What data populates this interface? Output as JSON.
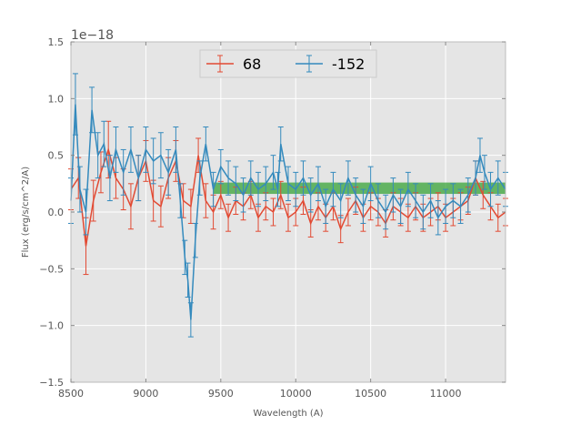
{
  "chart_data": {
    "type": "line",
    "title": "",
    "xlabel": "Wavelength (A)",
    "ylabel": "Flux (erg/s/cm^2/A)",
    "y_offset_label": "1e−18",
    "xlim": [
      8500,
      11400
    ],
    "ylim": [
      -1.5,
      1.5
    ],
    "xticks": [
      8500,
      9000,
      9500,
      10000,
      10500,
      11000
    ],
    "xtick_labels": [
      "8500",
      "9000",
      "9500",
      "10000",
      "10500",
      "11000"
    ],
    "yticks": [
      -1.5,
      -1.0,
      -0.5,
      0.0,
      0.5,
      1.0,
      1.5
    ],
    "ytick_labels": [
      "−1.5",
      "−1.0",
      "−0.5",
      "0.0",
      "0.5",
      "1.0",
      "1.5"
    ],
    "grid": true,
    "legend_position": "top-center",
    "background_color": "#e5e5e5",
    "band": {
      "x_start": 9450,
      "x_end": 11400,
      "y_low": 0.16,
      "y_high": 0.26,
      "color": "#2ca02c"
    },
    "series": [
      {
        "name": "68",
        "color": "#e24a33",
        "x": [
          8500,
          8550,
          8600,
          8650,
          8700,
          8750,
          8800,
          8850,
          8900,
          8950,
          9000,
          9050,
          9100,
          9150,
          9200,
          9250,
          9300,
          9350,
          9400,
          9450,
          9500,
          9550,
          9600,
          9650,
          9700,
          9750,
          9800,
          9850,
          9900,
          9950,
          10000,
          10050,
          10100,
          10150,
          10200,
          10250,
          10300,
          10350,
          10400,
          10450,
          10500,
          10550,
          10600,
          10650,
          10700,
          10750,
          10800,
          10850,
          10900,
          10950,
          11000,
          11050,
          11100,
          11150,
          11200,
          11250,
          11300,
          11350,
          11400
        ],
        "y": [
          0.2,
          0.3,
          -0.3,
          0.1,
          0.35,
          0.55,
          0.3,
          0.2,
          0.05,
          0.3,
          0.45,
          0.1,
          0.05,
          0.3,
          0.45,
          0.1,
          0.05,
          0.5,
          0.1,
          0.0,
          0.15,
          -0.05,
          0.1,
          0.05,
          0.15,
          -0.05,
          0.05,
          0.0,
          0.15,
          -0.05,
          0.0,
          0.1,
          -0.1,
          0.05,
          -0.05,
          0.05,
          -0.15,
          0.0,
          0.1,
          -0.05,
          0.05,
          0.0,
          -0.1,
          0.05,
          0.0,
          -0.05,
          0.05,
          -0.05,
          0.0,
          0.05,
          -0.05,
          0.0,
          0.05,
          0.1,
          0.3,
          0.15,
          0.05,
          -0.05,
          0.0
        ],
        "yerr": [
          0.18,
          0.18,
          0.25,
          0.18,
          0.18,
          0.25,
          0.18,
          0.18,
          0.2,
          0.2,
          0.18,
          0.18,
          0.18,
          0.18,
          0.18,
          0.15,
          0.15,
          0.15,
          0.15,
          0.15,
          0.12,
          0.12,
          0.12,
          0.12,
          0.12,
          0.12,
          0.12,
          0.12,
          0.12,
          0.12,
          0.12,
          0.12,
          0.12,
          0.12,
          0.12,
          0.12,
          0.12,
          0.12,
          0.12,
          0.12,
          0.12,
          0.12,
          0.12,
          0.12,
          0.12,
          0.12,
          0.12,
          0.12,
          0.12,
          0.12,
          0.12,
          0.12,
          0.12,
          0.12,
          0.15,
          0.12,
          0.12,
          0.12,
          0.12
        ]
      },
      {
        "name": "-152",
        "color": "#348abd",
        "x": [
          8500,
          8530,
          8560,
          8600,
          8640,
          8680,
          8720,
          8760,
          8800,
          8850,
          8900,
          8950,
          9000,
          9050,
          9100,
          9150,
          9200,
          9230,
          9260,
          9280,
          9300,
          9330,
          9360,
          9400,
          9450,
          9500,
          9550,
          9600,
          9650,
          9700,
          9750,
          9800,
          9850,
          9880,
          9900,
          9950,
          10000,
          10050,
          10100,
          10150,
          10200,
          10250,
          10300,
          10350,
          10400,
          10450,
          10500,
          10550,
          10600,
          10650,
          10700,
          10750,
          10800,
          10850,
          10900,
          10950,
          11000,
          11050,
          11100,
          11150,
          11200,
          11230,
          11260,
          11300,
          11350,
          11400
        ],
        "y": [
          0.1,
          0.95,
          0.2,
          0.0,
          0.9,
          0.5,
          0.6,
          0.3,
          0.55,
          0.35,
          0.55,
          0.3,
          0.55,
          0.45,
          0.5,
          0.35,
          0.55,
          0.1,
          -0.4,
          -0.6,
          -0.95,
          -0.25,
          0.3,
          0.6,
          0.2,
          0.4,
          0.3,
          0.25,
          0.15,
          0.3,
          0.2,
          0.25,
          0.35,
          0.2,
          0.6,
          0.25,
          0.2,
          0.3,
          0.15,
          0.25,
          0.05,
          0.2,
          0.1,
          0.3,
          0.15,
          0.05,
          0.25,
          0.1,
          0.0,
          0.15,
          0.05,
          0.2,
          0.1,
          0.0,
          0.1,
          -0.05,
          0.05,
          0.1,
          0.05,
          0.15,
          0.3,
          0.5,
          0.35,
          0.2,
          0.3,
          0.2
        ],
        "yerr": [
          0.2,
          0.27,
          0.2,
          0.2,
          0.2,
          0.2,
          0.2,
          0.2,
          0.2,
          0.2,
          0.2,
          0.2,
          0.2,
          0.2,
          0.2,
          0.2,
          0.2,
          0.15,
          0.15,
          0.15,
          0.15,
          0.15,
          0.15,
          0.15,
          0.15,
          0.15,
          0.15,
          0.15,
          0.15,
          0.15,
          0.15,
          0.15,
          0.15,
          0.15,
          0.15,
          0.15,
          0.15,
          0.15,
          0.15,
          0.15,
          0.15,
          0.15,
          0.15,
          0.15,
          0.15,
          0.15,
          0.15,
          0.15,
          0.15,
          0.15,
          0.15,
          0.15,
          0.15,
          0.15,
          0.15,
          0.15,
          0.15,
          0.15,
          0.15,
          0.15,
          0.15,
          0.15,
          0.15,
          0.15,
          0.15,
          0.15
        ]
      }
    ]
  }
}
